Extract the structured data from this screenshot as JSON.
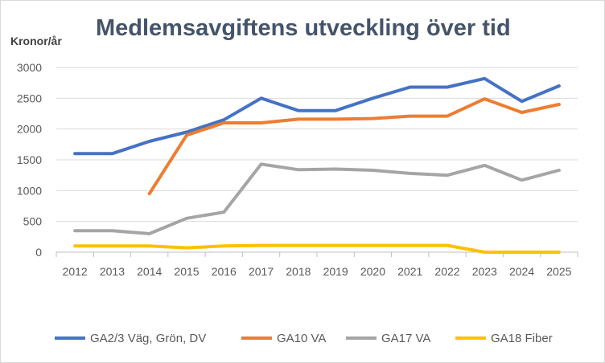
{
  "chart_data": {
    "type": "line",
    "title": "Medlemsavgiftens utveckling över tid",
    "ylabel": "Kronor/år",
    "xlabel": "",
    "x": [
      "2012",
      "2013",
      "2014",
      "2015",
      "2016",
      "2017",
      "2018",
      "2019",
      "2020",
      "2021",
      "2022",
      "2023",
      "2024",
      "2025"
    ],
    "ylim": [
      0,
      3000
    ],
    "yticks": [
      0,
      500,
      1000,
      1500,
      2000,
      2500,
      3000
    ],
    "grid": true,
    "legend_position": "bottom",
    "series": [
      {
        "name": "GA2/3 Väg, Grön, DV",
        "color": "#4472c4",
        "values": [
          1600,
          1600,
          1800,
          1950,
          2150,
          2500,
          2300,
          2300,
          2500,
          2680,
          2680,
          2820,
          2450,
          2700
        ]
      },
      {
        "name": "GA10 VA",
        "color": "#ed7d31",
        "values": [
          null,
          null,
          950,
          1900,
          2100,
          2100,
          2160,
          2160,
          2170,
          2210,
          2210,
          2490,
          2270,
          2400
        ]
      },
      {
        "name": "GA17 VA",
        "color": "#a5a5a5",
        "values": [
          350,
          350,
          300,
          550,
          650,
          1430,
          1340,
          1350,
          1330,
          1280,
          1250,
          1410,
          1170,
          1330
        ]
      },
      {
        "name": "GA18 Fiber",
        "color": "#ffc000",
        "values": [
          100,
          100,
          100,
          70,
          100,
          110,
          110,
          110,
          110,
          110,
          110,
          0,
          0,
          0
        ]
      }
    ]
  }
}
